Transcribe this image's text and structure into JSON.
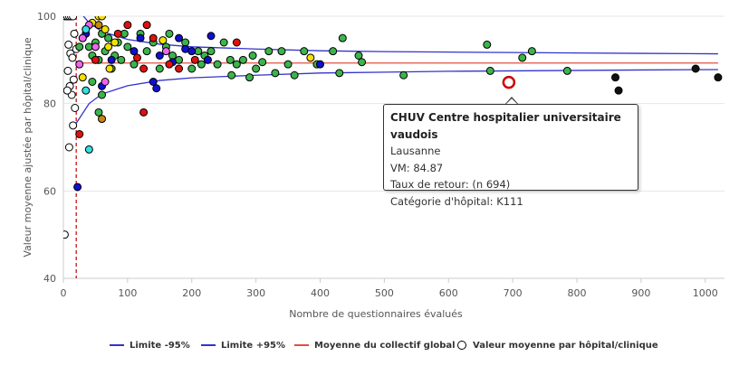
{
  "chart_data": {
    "type": "scatter",
    "title": "",
    "xlabel": "Nombre de questionnaires évalués",
    "ylabel": "Valeur moyenne ajustée par hôpital/clinique",
    "xlim": [
      0,
      1030
    ],
    "ylim": [
      40,
      100
    ],
    "x_ticks": [
      0,
      100,
      200,
      300,
      400,
      500,
      600,
      700,
      800,
      900,
      1000
    ],
    "y_ticks": [
      40,
      60,
      80,
      100
    ],
    "grid": true,
    "legend_position": "bottom",
    "mean_value": 89.3,
    "min_n_threshold": 20,
    "colors": {
      "limit_minus": "#3333cc",
      "limit_plus": "#3333cc",
      "mean": "#e05040",
      "threshold": "#c00000",
      "highlight": "#cc0000",
      "point_categories": {
        "white": "#ffffff",
        "green": "#3cb44b",
        "blue": "#1010d0",
        "yellow": "#f5e000",
        "red": "#e01010",
        "magenta": "#ee66ee",
        "cyan": "#33e0e0",
        "orange": "#c8860a",
        "black": "#111111"
      }
    },
    "series": [
      {
        "name": "Limite -95%",
        "type": "line",
        "x": [
          20,
          40,
          60,
          100,
          150,
          200,
          300,
          400,
          500,
          600,
          700,
          800,
          900,
          1020
        ],
        "y": [
          75.5,
          80.0,
          82.2,
          84.1,
          85.3,
          85.9,
          86.5,
          87.0,
          87.2,
          87.4,
          87.5,
          87.6,
          87.7,
          87.8
        ]
      },
      {
        "name": "Limite +95%",
        "type": "line",
        "x": [
          20,
          40,
          60,
          100,
          150,
          200,
          300,
          400,
          500,
          600,
          700,
          800,
          900,
          1020
        ],
        "y": [
          102,
          98.5,
          96.5,
          94.7,
          93.6,
          93.0,
          92.5,
          92.1,
          91.9,
          91.8,
          91.7,
          91.6,
          91.5,
          91.4
        ]
      },
      {
        "name": "Moyenne du collectif global",
        "type": "line",
        "x": [
          20,
          1020
        ],
        "y": [
          89.3,
          89.3
        ]
      },
      {
        "name": "Valeur moyenne par hôpital/clinique",
        "type": "scatter",
        "points": [
          {
            "x": 3,
            "y": 100,
            "c": "white"
          },
          {
            "x": 6,
            "y": 100,
            "c": "white"
          },
          {
            "x": 9,
            "y": 100,
            "c": "white"
          },
          {
            "x": 12,
            "y": 100,
            "c": "white"
          },
          {
            "x": 15,
            "y": 100,
            "c": "white"
          },
          {
            "x": 8,
            "y": 93.5,
            "c": "white"
          },
          {
            "x": 11,
            "y": 91.5,
            "c": "white"
          },
          {
            "x": 14,
            "y": 90.5,
            "c": "white"
          },
          {
            "x": 7,
            "y": 87.5,
            "c": "white"
          },
          {
            "x": 16,
            "y": 85.5,
            "c": "white"
          },
          {
            "x": 10,
            "y": 84,
            "c": "white"
          },
          {
            "x": 13,
            "y": 82,
            "c": "white"
          },
          {
            "x": 6,
            "y": 83,
            "c": "white"
          },
          {
            "x": 18,
            "y": 79,
            "c": "white"
          },
          {
            "x": 15,
            "y": 75,
            "c": "white"
          },
          {
            "x": 9,
            "y": 70,
            "c": "white"
          },
          {
            "x": 2,
            "y": 50,
            "c": "white"
          },
          {
            "x": 20,
            "y": 92.5,
            "c": "white"
          },
          {
            "x": 17,
            "y": 96,
            "c": "white"
          },
          {
            "x": 25,
            "y": 93,
            "c": "green"
          },
          {
            "x": 30,
            "y": 95,
            "c": "green"
          },
          {
            "x": 35,
            "y": 97,
            "c": "green"
          },
          {
            "x": 40,
            "y": 93,
            "c": "green"
          },
          {
            "x": 45,
            "y": 91,
            "c": "green"
          },
          {
            "x": 50,
            "y": 94,
            "c": "green"
          },
          {
            "x": 55,
            "y": 90,
            "c": "green"
          },
          {
            "x": 60,
            "y": 96,
            "c": "green"
          },
          {
            "x": 65,
            "y": 92,
            "c": "green"
          },
          {
            "x": 70,
            "y": 95,
            "c": "green"
          },
          {
            "x": 75,
            "y": 88,
            "c": "green"
          },
          {
            "x": 80,
            "y": 91,
            "c": "green"
          },
          {
            "x": 85,
            "y": 94,
            "c": "green"
          },
          {
            "x": 90,
            "y": 90,
            "c": "green"
          },
          {
            "x": 95,
            "y": 96,
            "c": "green"
          },
          {
            "x": 100,
            "y": 93,
            "c": "green"
          },
          {
            "x": 110,
            "y": 89,
            "c": "green"
          },
          {
            "x": 120,
            "y": 96,
            "c": "green"
          },
          {
            "x": 130,
            "y": 92,
            "c": "green"
          },
          {
            "x": 140,
            "y": 94,
            "c": "green"
          },
          {
            "x": 150,
            "y": 88,
            "c": "green"
          },
          {
            "x": 160,
            "y": 93,
            "c": "green"
          },
          {
            "x": 165,
            "y": 96,
            "c": "green"
          },
          {
            "x": 170,
            "y": 91,
            "c": "green"
          },
          {
            "x": 180,
            "y": 90,
            "c": "green"
          },
          {
            "x": 190,
            "y": 94,
            "c": "green"
          },
          {
            "x": 200,
            "y": 88,
            "c": "green"
          },
          {
            "x": 210,
            "y": 92,
            "c": "green"
          },
          {
            "x": 215,
            "y": 89,
            "c": "green"
          },
          {
            "x": 220,
            "y": 91,
            "c": "green"
          },
          {
            "x": 230,
            "y": 92,
            "c": "green"
          },
          {
            "x": 240,
            "y": 89,
            "c": "green"
          },
          {
            "x": 250,
            "y": 94,
            "c": "green"
          },
          {
            "x": 260,
            "y": 90,
            "c": "green"
          },
          {
            "x": 262,
            "y": 86.5,
            "c": "green"
          },
          {
            "x": 270,
            "y": 89,
            "c": "green"
          },
          {
            "x": 280,
            "y": 90,
            "c": "green"
          },
          {
            "x": 290,
            "y": 86,
            "c": "green"
          },
          {
            "x": 295,
            "y": 91,
            "c": "green"
          },
          {
            "x": 300,
            "y": 88,
            "c": "green"
          },
          {
            "x": 310,
            "y": 89.5,
            "c": "green"
          },
          {
            "x": 320,
            "y": 92,
            "c": "green"
          },
          {
            "x": 330,
            "y": 87,
            "c": "green"
          },
          {
            "x": 340,
            "y": 92,
            "c": "green"
          },
          {
            "x": 350,
            "y": 89,
            "c": "green"
          },
          {
            "x": 360,
            "y": 86.5,
            "c": "green"
          },
          {
            "x": 375,
            "y": 92,
            "c": "green"
          },
          {
            "x": 395,
            "y": 89,
            "c": "green"
          },
          {
            "x": 420,
            "y": 92,
            "c": "green"
          },
          {
            "x": 430,
            "y": 87,
            "c": "green"
          },
          {
            "x": 435,
            "y": 95,
            "c": "green"
          },
          {
            "x": 460,
            "y": 91,
            "c": "green"
          },
          {
            "x": 465,
            "y": 89.5,
            "c": "green"
          },
          {
            "x": 530,
            "y": 86.5,
            "c": "green"
          },
          {
            "x": 660,
            "y": 93.5,
            "c": "green"
          },
          {
            "x": 665,
            "y": 87.5,
            "c": "green"
          },
          {
            "x": 715,
            "y": 90.5,
            "c": "green"
          },
          {
            "x": 730,
            "y": 92,
            "c": "green"
          },
          {
            "x": 785,
            "y": 87.5,
            "c": "green"
          },
          {
            "x": 60,
            "y": 82,
            "c": "green"
          },
          {
            "x": 55,
            "y": 78,
            "c": "green"
          },
          {
            "x": 45,
            "y": 85,
            "c": "green"
          },
          {
            "x": 22,
            "y": 60.9,
            "c": "blue"
          },
          {
            "x": 35,
            "y": 96,
            "c": "blue"
          },
          {
            "x": 60,
            "y": 84,
            "c": "blue"
          },
          {
            "x": 75,
            "y": 90,
            "c": "blue"
          },
          {
            "x": 110,
            "y": 92,
            "c": "blue"
          },
          {
            "x": 120,
            "y": 95,
            "c": "blue"
          },
          {
            "x": 140,
            "y": 85,
            "c": "blue"
          },
          {
            "x": 145,
            "y": 83.5,
            "c": "blue"
          },
          {
            "x": 150,
            "y": 91,
            "c": "blue"
          },
          {
            "x": 170,
            "y": 89.5,
            "c": "blue"
          },
          {
            "x": 180,
            "y": 95,
            "c": "blue"
          },
          {
            "x": 190,
            "y": 92.5,
            "c": "blue"
          },
          {
            "x": 200,
            "y": 92,
            "c": "blue"
          },
          {
            "x": 225,
            "y": 90,
            "c": "blue"
          },
          {
            "x": 230,
            "y": 95.5,
            "c": "blue"
          },
          {
            "x": 400,
            "y": 89,
            "c": "blue"
          },
          {
            "x": 45,
            "y": 98.5,
            "c": "yellow"
          },
          {
            "x": 55,
            "y": 100,
            "c": "yellow"
          },
          {
            "x": 60,
            "y": 100,
            "c": "yellow"
          },
          {
            "x": 65,
            "y": 97,
            "c": "yellow"
          },
          {
            "x": 70,
            "y": 93,
            "c": "yellow"
          },
          {
            "x": 72,
            "y": 88,
            "c": "yellow"
          },
          {
            "x": 80,
            "y": 94,
            "c": "yellow"
          },
          {
            "x": 30,
            "y": 86,
            "c": "yellow"
          },
          {
            "x": 155,
            "y": 94.5,
            "c": "yellow"
          },
          {
            "x": 385,
            "y": 90.5,
            "c": "yellow"
          },
          {
            "x": 25,
            "y": 73,
            "c": "red"
          },
          {
            "x": 50,
            "y": 90,
            "c": "red"
          },
          {
            "x": 85,
            "y": 96,
            "c": "red"
          },
          {
            "x": 100,
            "y": 98,
            "c": "red"
          },
          {
            "x": 115,
            "y": 90.5,
            "c": "red"
          },
          {
            "x": 125,
            "y": 88,
            "c": "red"
          },
          {
            "x": 130,
            "y": 98,
            "c": "red"
          },
          {
            "x": 140,
            "y": 95,
            "c": "red"
          },
          {
            "x": 165,
            "y": 89,
            "c": "red"
          },
          {
            "x": 180,
            "y": 88,
            "c": "red"
          },
          {
            "x": 205,
            "y": 90,
            "c": "red"
          },
          {
            "x": 125,
            "y": 78,
            "c": "red"
          },
          {
            "x": 270,
            "y": 94,
            "c": "red"
          },
          {
            "x": 30,
            "y": 95,
            "c": "magenta"
          },
          {
            "x": 25,
            "y": 89,
            "c": "magenta"
          },
          {
            "x": 40,
            "y": 98,
            "c": "magenta"
          },
          {
            "x": 50,
            "y": 93,
            "c": "magenta"
          },
          {
            "x": 160,
            "y": 92,
            "c": "magenta"
          },
          {
            "x": 65,
            "y": 85,
            "c": "magenta"
          },
          {
            "x": 35,
            "y": 83,
            "c": "cyan"
          },
          {
            "x": 40,
            "y": 69.5,
            "c": "cyan"
          },
          {
            "x": 35,
            "y": 97,
            "c": "cyan"
          },
          {
            "x": 60,
            "y": 76.5,
            "c": "orange"
          },
          {
            "x": 55,
            "y": 98,
            "c": "orange"
          },
          {
            "x": 860,
            "y": 86,
            "c": "black"
          },
          {
            "x": 865,
            "y": 83,
            "c": "black"
          },
          {
            "x": 985,
            "y": 88,
            "c": "black"
          },
          {
            "x": 1020,
            "y": 86,
            "c": "black"
          }
        ]
      }
    ],
    "highlight": {
      "x": 694,
      "y": 84.87
    }
  },
  "legend": {
    "items": [
      {
        "label": "Limite -95%"
      },
      {
        "label": "Limite +95%"
      },
      {
        "label": "Moyenne du collectif global"
      },
      {
        "label": "Valeur moyenne par hôpital/clinique"
      }
    ]
  },
  "tooltip": {
    "title": "CHUV Centre hospitalier universitaire vaudois",
    "line1": "Lausanne",
    "line2": "VM: 84.87",
    "line3": "Taux de retour: (n 694)",
    "line4": "Catégorie d'hôpital: K111"
  }
}
